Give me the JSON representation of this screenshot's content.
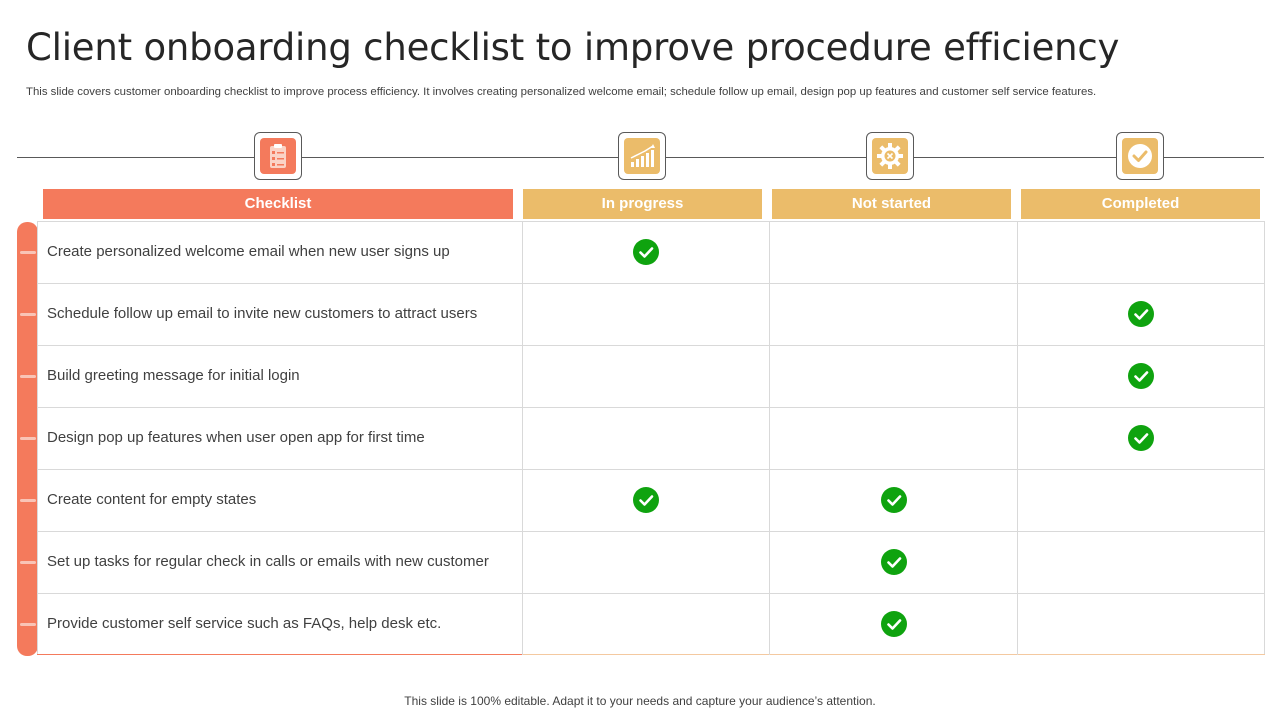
{
  "slide": {
    "title": "Client onboarding checklist to improve procedure efficiency",
    "subtitle": "This slide covers customer onboarding checklist to improve process efficiency. It involves creating personalized welcome email; schedule follow up email, design pop up features and customer self service features.",
    "footer": "This slide is 100% editable. Adapt it to your needs and capture your audience’s attention."
  },
  "colors": {
    "checklist_header": "#f47a5c",
    "status_header": "#ebbc6a",
    "check": "#0fa30f"
  },
  "columns": [
    {
      "label": "Checklist",
      "icon": "clipboard-icon"
    },
    {
      "label": "In progress",
      "icon": "growth-chart-icon"
    },
    {
      "label": "Not started",
      "icon": "gear-cancel-icon"
    },
    {
      "label": "Completed",
      "icon": "check-circle-icon"
    }
  ],
  "rows": [
    {
      "task": "Create personalized welcome email when new user signs up",
      "in_progress": true,
      "not_started": false,
      "completed": false
    },
    {
      "task": "Schedule follow up email to invite new customers to attract users",
      "in_progress": false,
      "not_started": false,
      "completed": true
    },
    {
      "task": "Build greeting message for initial login",
      "in_progress": false,
      "not_started": false,
      "completed": true
    },
    {
      "task": "Design pop up features when user open app for first time",
      "in_progress": false,
      "not_started": false,
      "completed": true
    },
    {
      "task": "Create content for empty states",
      "in_progress": true,
      "not_started": true,
      "completed": false
    },
    {
      "task": "Set up tasks for regular check in calls or emails with new customer",
      "in_progress": false,
      "not_started": true,
      "completed": false
    },
    {
      "task": "Provide customer self service such as FAQs, help desk etc.",
      "in_progress": false,
      "not_started": true,
      "completed": false
    }
  ]
}
